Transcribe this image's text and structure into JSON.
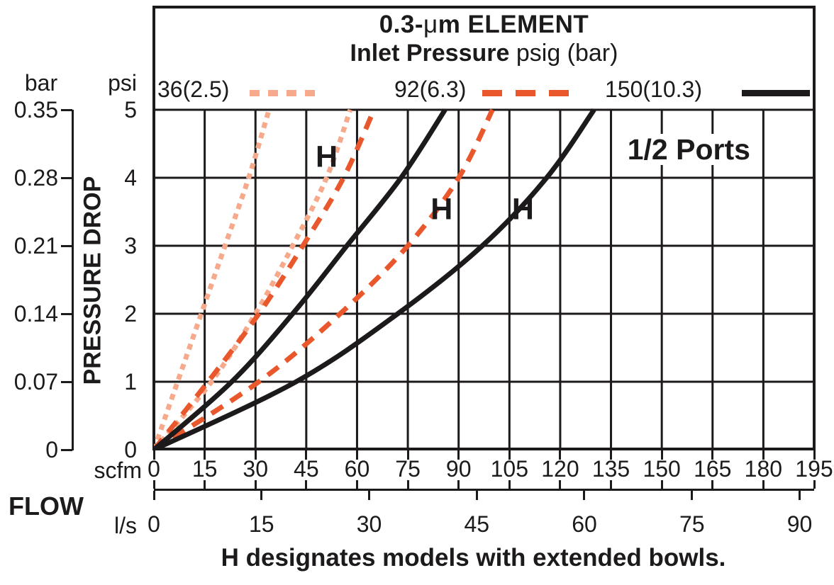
{
  "title": {
    "line1_pre": "0.3-",
    "line1_mu": "μ",
    "line1_post": "m ELEMENT",
    "line2_bold": "Inlet Pressure",
    "line2_normal": " psig (bar)"
  },
  "legend": {
    "items": [
      {
        "label": "36(2.5)",
        "line": "dotted",
        "color": "#F6A98B"
      },
      {
        "label": "92(6.3)",
        "line": "dashed",
        "color": "#E9582C"
      },
      {
        "label": "150(10.3)",
        "line": "solid",
        "color": "#1d1a1b"
      }
    ]
  },
  "axis_labels": {
    "bar": "bar",
    "psi": "psi",
    "scfm": "scfm",
    "ls": "l/s",
    "flow": "FLOW",
    "pressure_drop": "PRESSURE DROP"
  },
  "annotations": {
    "footer": "H designates models with extended bowls."
  },
  "chart_data": {
    "type": "line",
    "title": "0.3-μm ELEMENT",
    "subtitle": "Inlet Pressure psig (bar)",
    "x_axis": {
      "label": "FLOW",
      "primary_unit": "scfm",
      "scfm_ticks": [
        0,
        15,
        30,
        45,
        60,
        75,
        90,
        105,
        120,
        135,
        150,
        165,
        180,
        195
      ],
      "secondary_unit": "l/s",
      "ls_ticks": [
        0,
        15,
        30,
        45,
        60,
        75,
        90
      ],
      "scfm_range": [
        0,
        195
      ],
      "scfm_per_ls": 2.11893
    },
    "y_axis": {
      "label": "PRESSURE DROP",
      "primary_unit": "psi",
      "psi_ticks": [
        5,
        4,
        3,
        2,
        1,
        0
      ],
      "secondary_unit": "bar",
      "bar_ticks": [
        "0.35",
        "0.28",
        "0.21",
        "0.14",
        "0.07",
        "0"
      ],
      "psi_range": [
        0,
        5
      ]
    },
    "grid": {
      "x_step_scfm": 15,
      "y_step_psi": 1,
      "on": true
    },
    "series": [
      {
        "name": "36(2.5) standard",
        "inlet_psig": 36,
        "inlet_bar": 2.5,
        "model": "standard",
        "line": "dotted",
        "color": "#F6A98B",
        "points_scfm_psi": [
          [
            0,
            0
          ],
          [
            7,
            1
          ],
          [
            14,
            2
          ],
          [
            21,
            3
          ],
          [
            28,
            4
          ],
          [
            34,
            5
          ]
        ]
      },
      {
        "name": "36(2.5) H",
        "inlet_psig": 36,
        "inlet_bar": 2.5,
        "model": "H extended bowl",
        "line": "dotted",
        "color": "#F6A98B",
        "points_scfm_psi": [
          [
            0,
            0
          ],
          [
            17,
            1
          ],
          [
            30,
            2
          ],
          [
            41,
            3
          ],
          [
            51,
            4
          ],
          [
            58,
            5
          ]
        ]
      },
      {
        "name": "92(6.3) standard",
        "inlet_psig": 92,
        "inlet_bar": 6.3,
        "model": "standard",
        "line": "dashed",
        "color": "#E9582C",
        "points_scfm_psi": [
          [
            0,
            0
          ],
          [
            16,
            1
          ],
          [
            31,
            2
          ],
          [
            44,
            3
          ],
          [
            56,
            4
          ],
          [
            65,
            5
          ]
        ]
      },
      {
        "name": "92(6.3) H",
        "inlet_psig": 92,
        "inlet_bar": 6.3,
        "model": "H extended bowl",
        "line": "dashed",
        "color": "#E9582C",
        "points_scfm_psi": [
          [
            0,
            0
          ],
          [
            31,
            1
          ],
          [
            55,
            2
          ],
          [
            75,
            3
          ],
          [
            90,
            4
          ],
          [
            100,
            5
          ]
        ]
      },
      {
        "name": "150(10.3) standard",
        "inlet_psig": 150,
        "inlet_bar": 10.3,
        "model": "standard",
        "line": "solid",
        "color": "#1d1a1b",
        "points_scfm_psi": [
          [
            0,
            0
          ],
          [
            23,
            1
          ],
          [
            41,
            2
          ],
          [
            57,
            3
          ],
          [
            73,
            4
          ],
          [
            86,
            5
          ]
        ]
      },
      {
        "name": "150(10.3) H",
        "inlet_psig": 150,
        "inlet_bar": 10.3,
        "model": "H extended bowl",
        "line": "solid",
        "color": "#1d1a1b",
        "points_scfm_psi": [
          [
            0,
            0
          ],
          [
            42,
            1
          ],
          [
            72,
            2
          ],
          [
            97,
            3
          ],
          [
            116,
            4
          ],
          [
            130,
            5
          ]
        ]
      }
    ],
    "point_annotations": [
      {
        "text": "H",
        "scfm": 51,
        "psi": 4.3,
        "series": "36(2.5) H"
      },
      {
        "text": "H",
        "scfm": 85,
        "psi": 3.53,
        "series": "92(6.3) H"
      },
      {
        "text": "H",
        "scfm": 109,
        "psi": 3.53,
        "series": "150(10.3) H"
      },
      {
        "text": "1/2 Ports",
        "scfm": 158,
        "psi": 4.42
      }
    ],
    "legend_position": "top"
  }
}
